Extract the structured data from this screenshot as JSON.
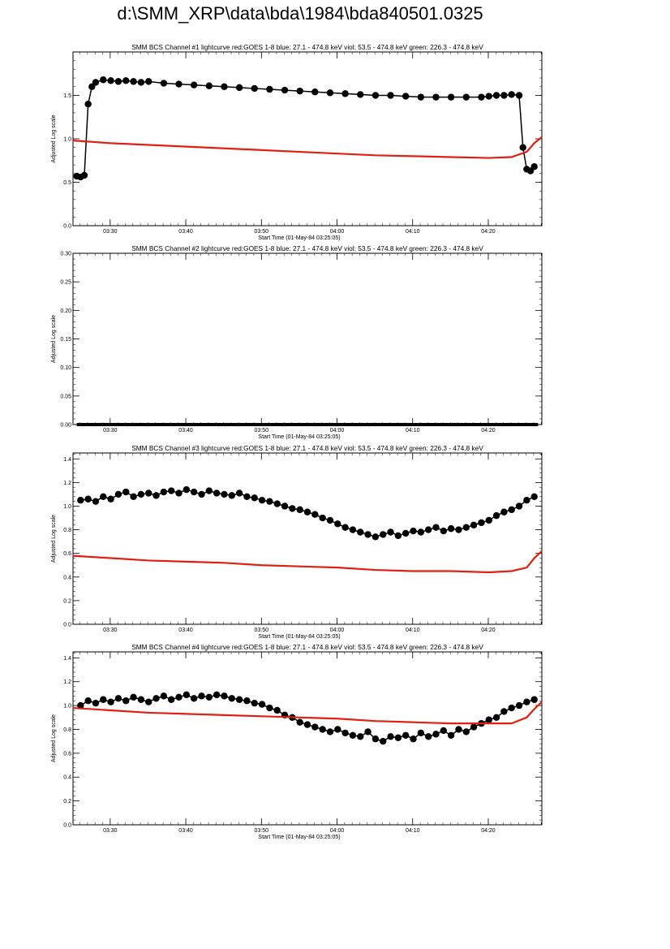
{
  "page": {
    "title": "d:\\SMM_XRP\\data\\bda\\1984\\bda840501.0325"
  },
  "colors": {
    "obs": "#000000",
    "goes": "#e02010",
    "axis": "#000000"
  },
  "chart_data": [
    {
      "type": "scatter",
      "title": "SMM BCS Channel #1 lightcurve  red:GOES 1-8  blue: 27.1 - 474.8 keV  viol: 53.5 - 474.8 keV  green: 226.3 - 474.8 keV",
      "xlabel": "Start Time (01-May-84 03:25:05)",
      "ylabel": "Adjusted Log scale",
      "xlim": [
        0,
        62
      ],
      "ylim": [
        0,
        2.0
      ],
      "xticks": [
        "03:30",
        "03:40",
        "03:50",
        "04:00",
        "04:10",
        "04:20"
      ],
      "yticks": [
        "0.0",
        "0.5",
        "1.0",
        "1.5"
      ],
      "ytick_values": [
        0.0,
        0.5,
        1.0,
        1.5
      ],
      "series": [
        {
          "color": "black",
          "style": "line-marker",
          "x": [
            0.5,
            1.0,
            1.5,
            2.0,
            2.5,
            3.0,
            4,
            5,
            6,
            7,
            8,
            9,
            10,
            12,
            14,
            16,
            18,
            20,
            22,
            24,
            26,
            28,
            30,
            32,
            34,
            36,
            38,
            40,
            42,
            44,
            46,
            48,
            50,
            52,
            54,
            55,
            56,
            57,
            58,
            59,
            59.5,
            60,
            60.5,
            61
          ],
          "y": [
            0.57,
            0.56,
            0.58,
            1.4,
            1.6,
            1.65,
            1.68,
            1.67,
            1.66,
            1.67,
            1.66,
            1.65,
            1.66,
            1.64,
            1.63,
            1.62,
            1.61,
            1.6,
            1.59,
            1.58,
            1.57,
            1.56,
            1.55,
            1.54,
            1.53,
            1.52,
            1.51,
            1.5,
            1.5,
            1.49,
            1.48,
            1.48,
            1.48,
            1.48,
            1.48,
            1.49,
            1.5,
            1.5,
            1.51,
            1.5,
            0.9,
            0.65,
            0.63,
            0.68
          ]
        },
        {
          "color": "red",
          "style": "line",
          "x": [
            0,
            5,
            10,
            15,
            20,
            25,
            30,
            35,
            40,
            45,
            50,
            55,
            58,
            60,
            61,
            62
          ],
          "y": [
            0.98,
            0.95,
            0.93,
            0.91,
            0.89,
            0.87,
            0.85,
            0.83,
            0.81,
            0.8,
            0.79,
            0.78,
            0.79,
            0.85,
            0.95,
            1.02
          ]
        }
      ]
    },
    {
      "type": "scatter",
      "title": "SMM BCS Channel #2 lightcurve  red:GOES 1-8  blue: 27.1 - 474.8 keV  viol: 53.5 - 474.8 keV  green: 226.3 - 474.8 keV",
      "xlabel": "Start Time (01-May-84 03:25:05)",
      "ylabel": "Adjusted Log scale",
      "xlim": [
        0,
        62
      ],
      "ylim": [
        0,
        0.3
      ],
      "xticks": [
        "03:30",
        "03:40",
        "03:50",
        "04:00",
        "04:10",
        "04:20"
      ],
      "yticks": [
        "0.00",
        "0.05",
        "0.10",
        "0.15",
        "0.20",
        "0.25",
        "0.30"
      ],
      "ytick_values": [
        0.0,
        0.05,
        0.1,
        0.15,
        0.2,
        0.25,
        0.3
      ],
      "series": [
        {
          "color": "black",
          "style": "thick-line",
          "x": [
            0.5,
            61.5
          ],
          "y": [
            0.0,
            0.0
          ]
        }
      ]
    },
    {
      "type": "scatter",
      "title": "SMM BCS Channel #3 lightcurve  red:GOES 1-8  blue: 27.1 - 474.8 keV  viol: 53.5 - 474.8 keV  green: 226.3 - 474.8 keV",
      "xlabel": "Start Time (01-May-84 03:25:05)",
      "ylabel": "Adjusted Log scale",
      "xlim": [
        0,
        62
      ],
      "ylim": [
        0,
        1.45
      ],
      "xticks": [
        "03:30",
        "03:40",
        "03:50",
        "04:00",
        "04:10",
        "04:20"
      ],
      "yticks": [
        "0.0",
        "0.2",
        "0.4",
        "0.6",
        "0.8",
        "1.0",
        "1.2",
        "1.4"
      ],
      "ytick_values": [
        0.0,
        0.2,
        0.4,
        0.6,
        0.8,
        1.0,
        1.2,
        1.4
      ],
      "series": [
        {
          "color": "black",
          "style": "line-marker",
          "x": [
            1,
            2,
            3,
            4,
            5,
            6,
            7,
            8,
            9,
            10,
            11,
            12,
            13,
            14,
            15,
            16,
            17,
            18,
            19,
            20,
            21,
            22,
            23,
            24,
            25,
            26,
            27,
            28,
            29,
            30,
            31,
            32,
            33,
            34,
            35,
            36,
            37,
            38,
            39,
            40,
            41,
            42,
            43,
            44,
            45,
            46,
            47,
            48,
            49,
            50,
            51,
            52,
            53,
            54,
            55,
            56,
            57,
            58,
            59,
            60,
            61
          ],
          "y": [
            1.05,
            1.06,
            1.04,
            1.08,
            1.06,
            1.1,
            1.12,
            1.08,
            1.1,
            1.11,
            1.09,
            1.12,
            1.13,
            1.11,
            1.14,
            1.12,
            1.1,
            1.13,
            1.11,
            1.1,
            1.09,
            1.11,
            1.08,
            1.07,
            1.05,
            1.04,
            1.02,
            1.0,
            0.98,
            0.97,
            0.95,
            0.93,
            0.9,
            0.88,
            0.85,
            0.82,
            0.8,
            0.78,
            0.76,
            0.74,
            0.76,
            0.78,
            0.75,
            0.77,
            0.79,
            0.78,
            0.8,
            0.82,
            0.79,
            0.81,
            0.8,
            0.82,
            0.84,
            0.86,
            0.88,
            0.92,
            0.95,
            0.97,
            1.0,
            1.05,
            1.08
          ]
        },
        {
          "color": "red",
          "style": "line",
          "x": [
            0,
            5,
            10,
            15,
            20,
            25,
            30,
            35,
            40,
            45,
            50,
            55,
            58,
            60,
            61,
            62
          ],
          "y": [
            0.58,
            0.56,
            0.54,
            0.53,
            0.52,
            0.5,
            0.49,
            0.48,
            0.46,
            0.45,
            0.45,
            0.44,
            0.45,
            0.48,
            0.56,
            0.62
          ]
        }
      ]
    },
    {
      "type": "scatter",
      "title": "SMM BCS Channel #4 lightcurve  red:GOES 1-8  blue: 27.1 - 474.8 keV  viol: 53.5 - 474.8 keV  green: 226.3 - 474.8 keV",
      "xlabel": "Start Time (01-May-84 03:25:05)",
      "ylabel": "Adjusted Log scale",
      "xlim": [
        0,
        62
      ],
      "ylim": [
        0,
        1.45
      ],
      "xticks": [
        "03:30",
        "03:40",
        "03:50",
        "04:00",
        "04:10",
        "04:20"
      ],
      "yticks": [
        "0.0",
        "0.2",
        "0.4",
        "0.6",
        "0.8",
        "1.0",
        "1.2",
        "1.4"
      ],
      "ytick_values": [
        0.0,
        0.2,
        0.4,
        0.6,
        0.8,
        1.0,
        1.2,
        1.4
      ],
      "series": [
        {
          "color": "black",
          "style": "line-marker",
          "x": [
            1,
            2,
            3,
            4,
            5,
            6,
            7,
            8,
            9,
            10,
            11,
            12,
            13,
            14,
            15,
            16,
            17,
            18,
            19,
            20,
            21,
            22,
            23,
            24,
            25,
            26,
            27,
            28,
            29,
            30,
            31,
            32,
            33,
            34,
            35,
            36,
            37,
            38,
            39,
            40,
            41,
            42,
            43,
            44,
            45,
            46,
            47,
            48,
            49,
            50,
            51,
            52,
            53,
            54,
            55,
            56,
            57,
            58,
            59,
            60,
            61
          ],
          "y": [
            1.0,
            1.04,
            1.02,
            1.05,
            1.03,
            1.06,
            1.04,
            1.07,
            1.05,
            1.03,
            1.06,
            1.08,
            1.05,
            1.07,
            1.09,
            1.06,
            1.08,
            1.07,
            1.09,
            1.08,
            1.06,
            1.05,
            1.04,
            1.02,
            1.01,
            0.98,
            0.96,
            0.92,
            0.9,
            0.86,
            0.84,
            0.82,
            0.8,
            0.78,
            0.8,
            0.77,
            0.75,
            0.74,
            0.78,
            0.72,
            0.7,
            0.74,
            0.73,
            0.75,
            0.72,
            0.77,
            0.74,
            0.76,
            0.79,
            0.75,
            0.8,
            0.78,
            0.82,
            0.85,
            0.88,
            0.9,
            0.95,
            0.98,
            1.0,
            1.03,
            1.05
          ]
        },
        {
          "color": "red",
          "style": "line",
          "x": [
            0,
            5,
            10,
            15,
            20,
            25,
            30,
            35,
            40,
            45,
            50,
            55,
            58,
            60,
            61,
            62
          ],
          "y": [
            0.98,
            0.96,
            0.94,
            0.93,
            0.92,
            0.91,
            0.9,
            0.89,
            0.87,
            0.86,
            0.85,
            0.85,
            0.85,
            0.9,
            0.97,
            1.03
          ]
        }
      ]
    }
  ]
}
